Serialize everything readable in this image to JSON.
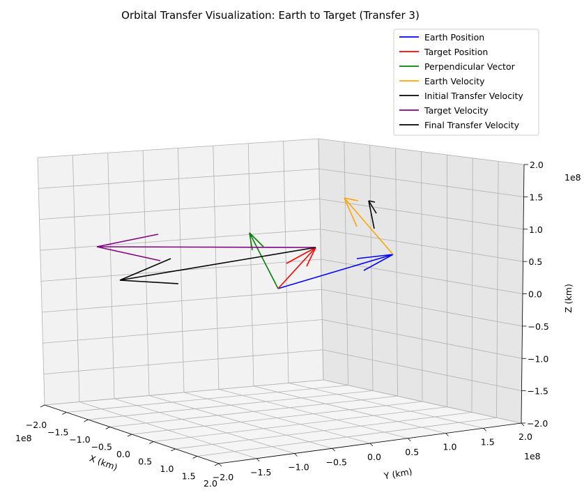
{
  "chart_data": {
    "type": "quiver3d",
    "title": "Orbital Transfer Visualization: Earth to Target (Transfer 3)",
    "xlabel": "X (km)",
    "ylabel": "Y (km)",
    "zlabel": "Z (km)",
    "offset_text": {
      "x": "1e8",
      "y": "1e8",
      "z": "1e8"
    },
    "xlim": [
      -2.0,
      2.0
    ],
    "ylim": [
      -2.0,
      2.0
    ],
    "zlim": [
      -2.0,
      2.0
    ],
    "x_ticks": [
      "−2.0",
      "−1.5",
      "−1.0",
      "−0.5",
      "0.0",
      "0.5",
      "1.0",
      "1.5",
      "2.0"
    ],
    "y_ticks": [
      "−2.0",
      "−1.5",
      "−1.0",
      "−0.5",
      "0.0",
      "0.5",
      "1.0",
      "1.5",
      "2.0"
    ],
    "z_ticks": [
      "−2.0",
      "−1.5",
      "−1.0",
      "−0.5",
      "0.0",
      "0.5",
      "1.0",
      "1.5",
      "2.0"
    ],
    "grid": true,
    "legend_position": "upper-right",
    "series": [
      {
        "name": "Earth Position",
        "color": "#0000ff"
      },
      {
        "name": "Target Position",
        "color": "#ff0000"
      },
      {
        "name": "Perpendicular Vector",
        "color": "#008000"
      },
      {
        "name": "Earth Velocity",
        "color": "#ffa500"
      },
      {
        "name": "Initial Transfer Velocity",
        "color": "#000000"
      },
      {
        "name": "Target Velocity",
        "color": "#800080"
      },
      {
        "name": "Final Transfer Velocity",
        "color": "#000000"
      }
    ]
  }
}
